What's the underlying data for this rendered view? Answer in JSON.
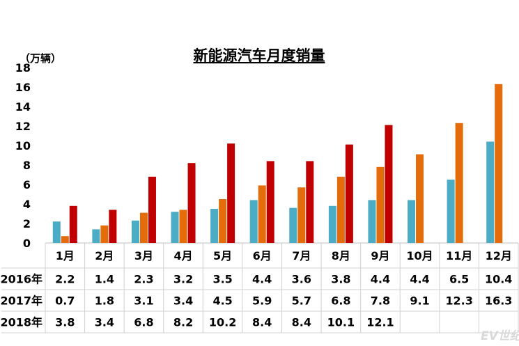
{
  "chart_data": {
    "type": "bar",
    "title": "新能源汽车月度销量",
    "unit": "（万辆）",
    "ylim": [
      0,
      18
    ],
    "yticks": [
      "0",
      "2",
      "4",
      "6",
      "8",
      "10",
      "12",
      "14",
      "16",
      "18"
    ],
    "categories": [
      "1月",
      "2月",
      "3月",
      "4月",
      "5月",
      "6月",
      "7月",
      "8月",
      "9月",
      "10月",
      "11月",
      "12月"
    ],
    "series": [
      {
        "name": "2016年",
        "color": "#4BACC6",
        "values": [
          2.2,
          1.4,
          2.3,
          3.2,
          3.5,
          4.4,
          3.6,
          3.8,
          4.4,
          4.4,
          6.5,
          10.4
        ]
      },
      {
        "name": "2017年",
        "color": "#E46C0A",
        "values": [
          0.7,
          1.8,
          3.1,
          3.4,
          4.5,
          5.9,
          5.7,
          6.8,
          7.8,
          9.1,
          12.3,
          16.3
        ]
      },
      {
        "name": "2018年",
        "color": "#C00000",
        "values": [
          3.8,
          3.4,
          6.8,
          8.2,
          10.2,
          8.4,
          8.4,
          10.1,
          12.1,
          null,
          null,
          null
        ]
      }
    ],
    "table": {
      "rows": [
        {
          "label": "2016年",
          "cells": [
            "2.2",
            "1.4",
            "2.3",
            "3.2",
            "3.5",
            "4.4",
            "3.6",
            "3.8",
            "4.4",
            "4.4",
            "6.5",
            "10.4"
          ]
        },
        {
          "label": "2017年",
          "cells": [
            "0.7",
            "1.8",
            "3.1",
            "3.4",
            "4.5",
            "5.9",
            "5.7",
            "6.8",
            "7.8",
            "9.1",
            "12.3",
            "16.3"
          ]
        },
        {
          "label": "2018年",
          "cells": [
            "3.8",
            "3.4",
            "6.8",
            "8.2",
            "10.2",
            "8.4",
            "8.4",
            "10.1",
            "12.1",
            "",
            "",
            ""
          ]
        }
      ]
    },
    "grid": false
  },
  "watermark": "EV世纪"
}
